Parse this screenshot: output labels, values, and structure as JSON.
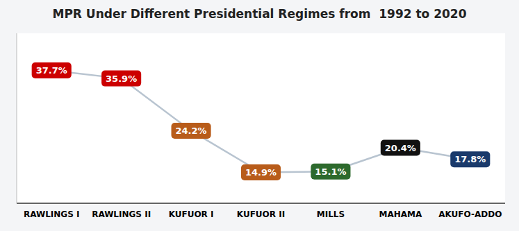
{
  "chart_data": {
    "type": "line",
    "title": "MPR Under Different Presidential Regimes from  1992 to 2020",
    "categories": [
      "RAWLINGS I",
      "RAWLINGS II",
      "KUFUOR I",
      "KUFUOR II",
      "MILLS",
      "MAHAMA",
      "AKUFO-ADDO"
    ],
    "values": [
      37.7,
      35.9,
      24.2,
      14.9,
      15.1,
      20.4,
      17.8
    ],
    "value_labels": [
      "37.7%",
      "35.9%",
      "24.2%",
      "14.9%",
      "15.1%",
      "20.4%",
      "17.8%"
    ],
    "color": "#b8c4d0",
    "colors": [
      "#cc0000",
      "#cc0000",
      "#b85c1a",
      "#b85c1a",
      "#2d6a2d",
      "#111111",
      "#1a3a6b"
    ],
    "ylim": [
      8,
      46
    ],
    "data_labels": true,
    "tick_labels": "x",
    "grid": false
  }
}
